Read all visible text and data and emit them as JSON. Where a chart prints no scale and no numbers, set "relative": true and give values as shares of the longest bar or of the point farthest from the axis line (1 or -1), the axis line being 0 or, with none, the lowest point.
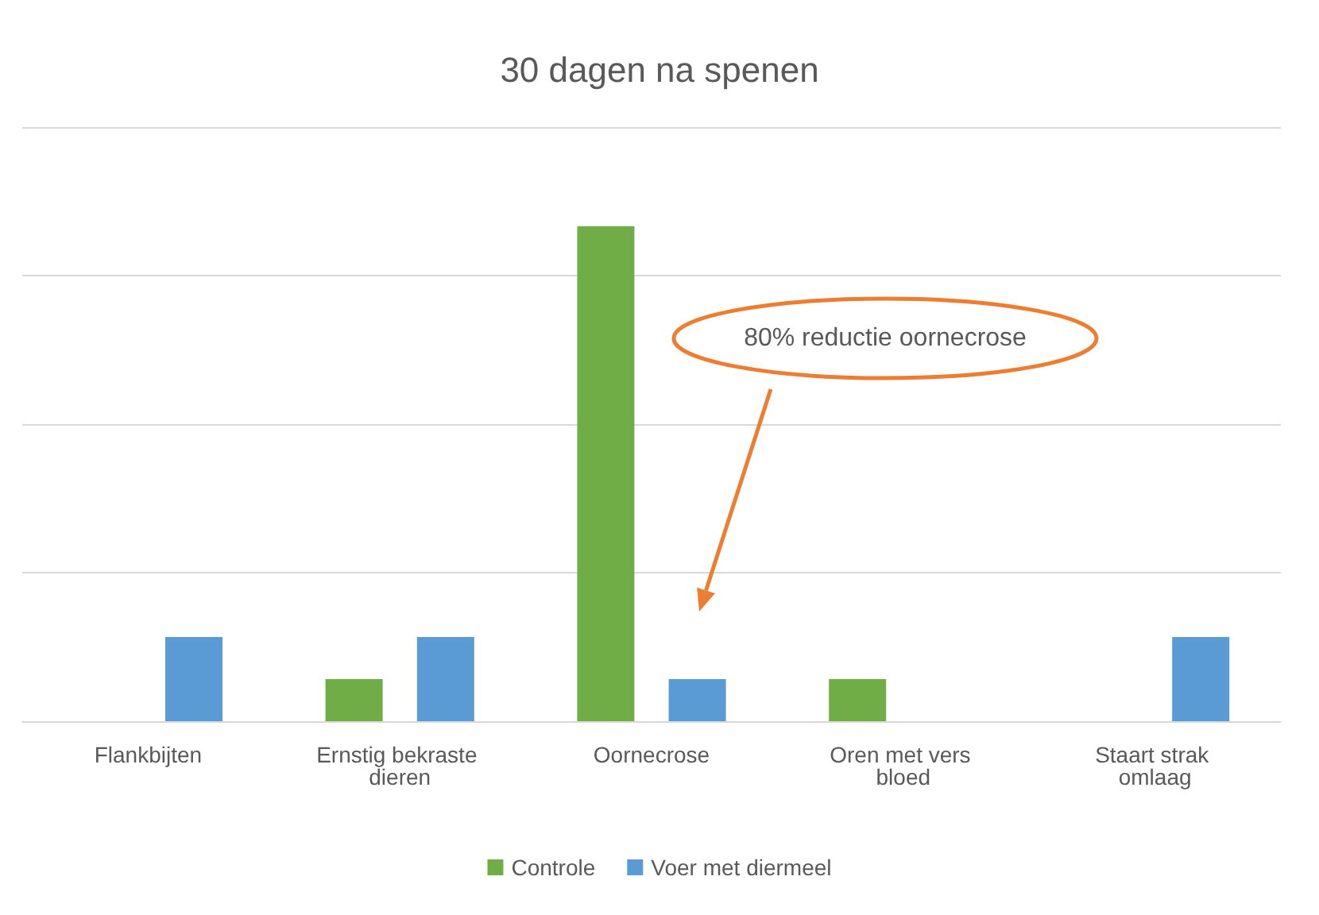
{
  "chart_data": {
    "type": "bar",
    "title": "30 dagen na spenen",
    "relative": true,
    "categories": [
      "Flankbijten",
      "Ernstig bekraste dieren",
      "Oornecrose",
      "Oren met vers bloed",
      "Staart strak omlaag"
    ],
    "series": [
      {
        "name": "Controle",
        "color": "#70ad47",
        "values": [
          0,
          0.085,
          1,
          0.085,
          0
        ]
      },
      {
        "name": "Voer met diermeel",
        "color": "#5b9bd5",
        "values": [
          0.17,
          0.17,
          0.085,
          0,
          0.17
        ]
      }
    ],
    "annotations": [
      "80% reductie oornecrose"
    ],
    "grid": "y",
    "legend": "bottom"
  }
}
